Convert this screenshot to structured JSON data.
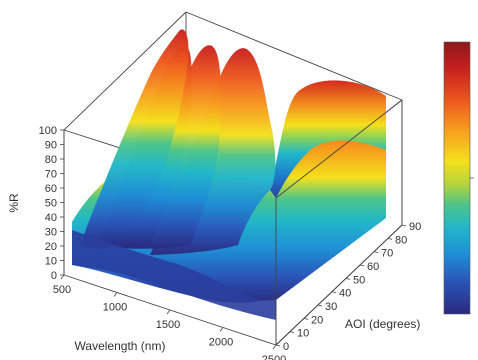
{
  "chart_data": {
    "type": "surface",
    "title": "",
    "xlabel": "Wavelength (nm)",
    "ylabel": "AOI (degrees)",
    "zlabel": "%R",
    "x_ticks": [
      "500",
      "1000",
      "1500",
      "2000",
      "2500"
    ],
    "y_ticks": [
      "0",
      "10",
      "20",
      "30",
      "40",
      "50",
      "60",
      "70",
      "80",
      "90"
    ],
    "z_ticks": [
      "0",
      "10",
      "20",
      "30",
      "40",
      "50",
      "60",
      "70",
      "80",
      "90",
      "100"
    ],
    "xlim": [
      500,
      2500
    ],
    "ylim": [
      0,
      90
    ],
    "zlim": [
      0,
      100
    ],
    "colorscale": [
      "#2b2a7e",
      "#2a55b8",
      "#1f8fd6",
      "#22b7c8",
      "#4cc48a",
      "#b8d43a",
      "#f4e01c",
      "#f7a21e",
      "#ee5a1e",
      "#c8201e",
      "#8b1a1a"
    ],
    "ridges_at_aoi_max": [
      {
        "wavelength": 700,
        "r": 98
      },
      {
        "wavelength": 900,
        "r": 95
      },
      {
        "wavelength": 1100,
        "r": 92
      },
      {
        "wavelength": 1450,
        "r": 90
      },
      {
        "wavelength": 2300,
        "r": 88
      }
    ],
    "legend": "colorbar right",
    "grid": false
  }
}
